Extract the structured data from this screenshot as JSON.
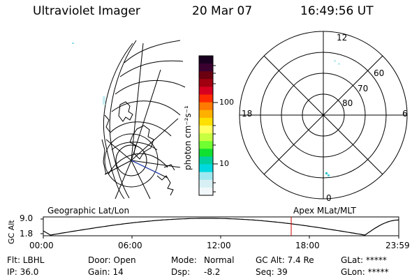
{
  "header": {
    "instrument": "Ultraviolet Imager",
    "date": "20 Mar 07",
    "time": "16:49:56 UT"
  },
  "colorbar": {
    "unit_label": "photon cm⁻²s⁻¹",
    "ticks": [
      "100",
      "10"
    ],
    "colors": [
      "#1a0020",
      "#3a0030",
      "#6a0010",
      "#a00010",
      "#d80020",
      "#ff2a00",
      "#ff7a00",
      "#ffb000",
      "#ffe000",
      "#ffff60",
      "#c8ff40",
      "#70ff30",
      "#10e030",
      "#00d0a0",
      "#00d8e0",
      "#a0e8f0",
      "#d8f0f4",
      "#f2f8fa"
    ]
  },
  "polar_plot": {
    "mlt_labels": {
      "top": "12",
      "left": "18",
      "right": "6",
      "bottom": "0"
    },
    "lat_labels": [
      "60",
      "70",
      "80"
    ]
  },
  "timeline": {
    "left_label": "Geographic Lat/Lon",
    "right_label": "Apex MLat/MLT",
    "axis_label": "GC Alt",
    "y_ticks": [
      "9.0",
      "1.8"
    ],
    "x_ticks": [
      "00:00",
      "06:00",
      "12:00",
      "18:00",
      "23:59"
    ],
    "marker_color": "#d00000"
  },
  "footer": {
    "row1": {
      "flt": "Flt: LBHL",
      "door": "Door: Open",
      "mode_label": "Mode:",
      "mode_value": "Normal",
      "gcalt": "GC Alt: 7.4 Re",
      "glat": "GLat: *****"
    },
    "row2": {
      "ip": "IP: 36.0",
      "gain": "Gain: 14",
      "dsp_label": "Dsp:",
      "dsp_value": "-8.2",
      "seq": "Seq: 39",
      "glon": "GLon: *****"
    }
  }
}
